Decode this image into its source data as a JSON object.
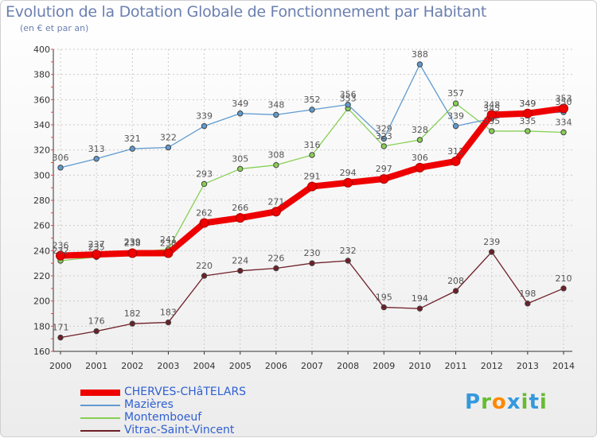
{
  "header": {
    "title": "Evolution de la Dotation Globale de Fonctionnement par Habitant",
    "subtitle": "(en € et par an)"
  },
  "logo": {
    "text": "Proxiti",
    "letters": [
      "P",
      "r",
      "o",
      "x",
      "i",
      "t",
      "i"
    ],
    "colors": [
      "#3399dd",
      "#66bb33",
      "#ff8800",
      "#3399dd",
      "#66bb33",
      "#3399dd",
      "#66bb33"
    ]
  },
  "chart_data": {
    "type": "line",
    "categories": [
      "2000",
      "2001",
      "2002",
      "2003",
      "2004",
      "2005",
      "2006",
      "2007",
      "2008",
      "2009",
      "2010",
      "2011",
      "2012",
      "2013",
      "2014"
    ],
    "ylim": [
      160,
      400
    ],
    "yticks": [
      160,
      180,
      200,
      220,
      240,
      260,
      280,
      300,
      320,
      340,
      360,
      380,
      400
    ],
    "grid": true,
    "legend_position": "bottom-left",
    "series": [
      {
        "name": "CHERVES-CHâTELARS",
        "color": "#ee0000",
        "values": [
          236,
          237,
          238,
          238,
          262,
          266,
          271,
          291,
          294,
          297,
          306,
          311,
          348,
          349,
          353
        ]
      },
      {
        "name": "Mazières",
        "color": "#5f9bd0",
        "values": [
          306,
          313,
          321,
          322,
          339,
          349,
          348,
          352,
          356,
          329,
          388,
          339,
          345,
          349,
          350
        ]
      },
      {
        "name": "Montemboeuf",
        "color": "#88d055",
        "values": [
          232,
          235,
          239,
          241,
          293,
          305,
          308,
          316,
          353,
          323,
          328,
          357,
          335,
          335,
          334
        ]
      },
      {
        "name": "Vitrac-Saint-Vincent",
        "color": "#6e1f28",
        "values": [
          171,
          176,
          182,
          183,
          220,
          224,
          226,
          230,
          232,
          195,
          194,
          208,
          239,
          198,
          210
        ]
      }
    ]
  }
}
